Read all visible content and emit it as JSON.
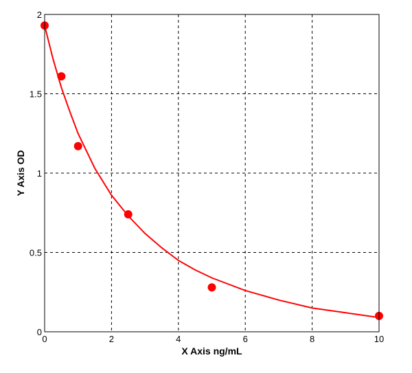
{
  "chart_data": {
    "type": "scatter",
    "title": "",
    "xlabel": "X Axis ng/mL",
    "ylabel": "Y Axis OD",
    "xlim": [
      0,
      10
    ],
    "ylim": [
      0,
      2
    ],
    "x_ticks": [
      0,
      2,
      4,
      6,
      8,
      10
    ],
    "y_ticks": [
      0,
      0.5,
      1,
      1.5,
      2
    ],
    "x_tick_labels": [
      "0",
      "2",
      "4",
      "6",
      "8",
      "10"
    ],
    "y_tick_labels": [
      "0",
      "0.5",
      "1",
      "1.5",
      "2"
    ],
    "grid": true,
    "grid_style": "dashed",
    "series": [
      {
        "kind": "points",
        "color": "#ff0000",
        "x": [
          0,
          0.5,
          1,
          2.5,
          5,
          10
        ],
        "y": [
          1.93,
          1.61,
          1.17,
          0.74,
          0.28,
          0.1
        ]
      },
      {
        "kind": "fitted-curve",
        "color": "#ff0000",
        "x": [
          0,
          0.25,
          0.5,
          0.75,
          1,
          1.5,
          2,
          2.5,
          3,
          3.5,
          4,
          4.5,
          5,
          6,
          7,
          8,
          9,
          10
        ],
        "y": [
          1.93,
          1.72,
          1.54,
          1.39,
          1.25,
          1.03,
          0.86,
          0.73,
          0.62,
          0.53,
          0.45,
          0.39,
          0.34,
          0.26,
          0.2,
          0.15,
          0.12,
          0.09
        ]
      }
    ]
  }
}
